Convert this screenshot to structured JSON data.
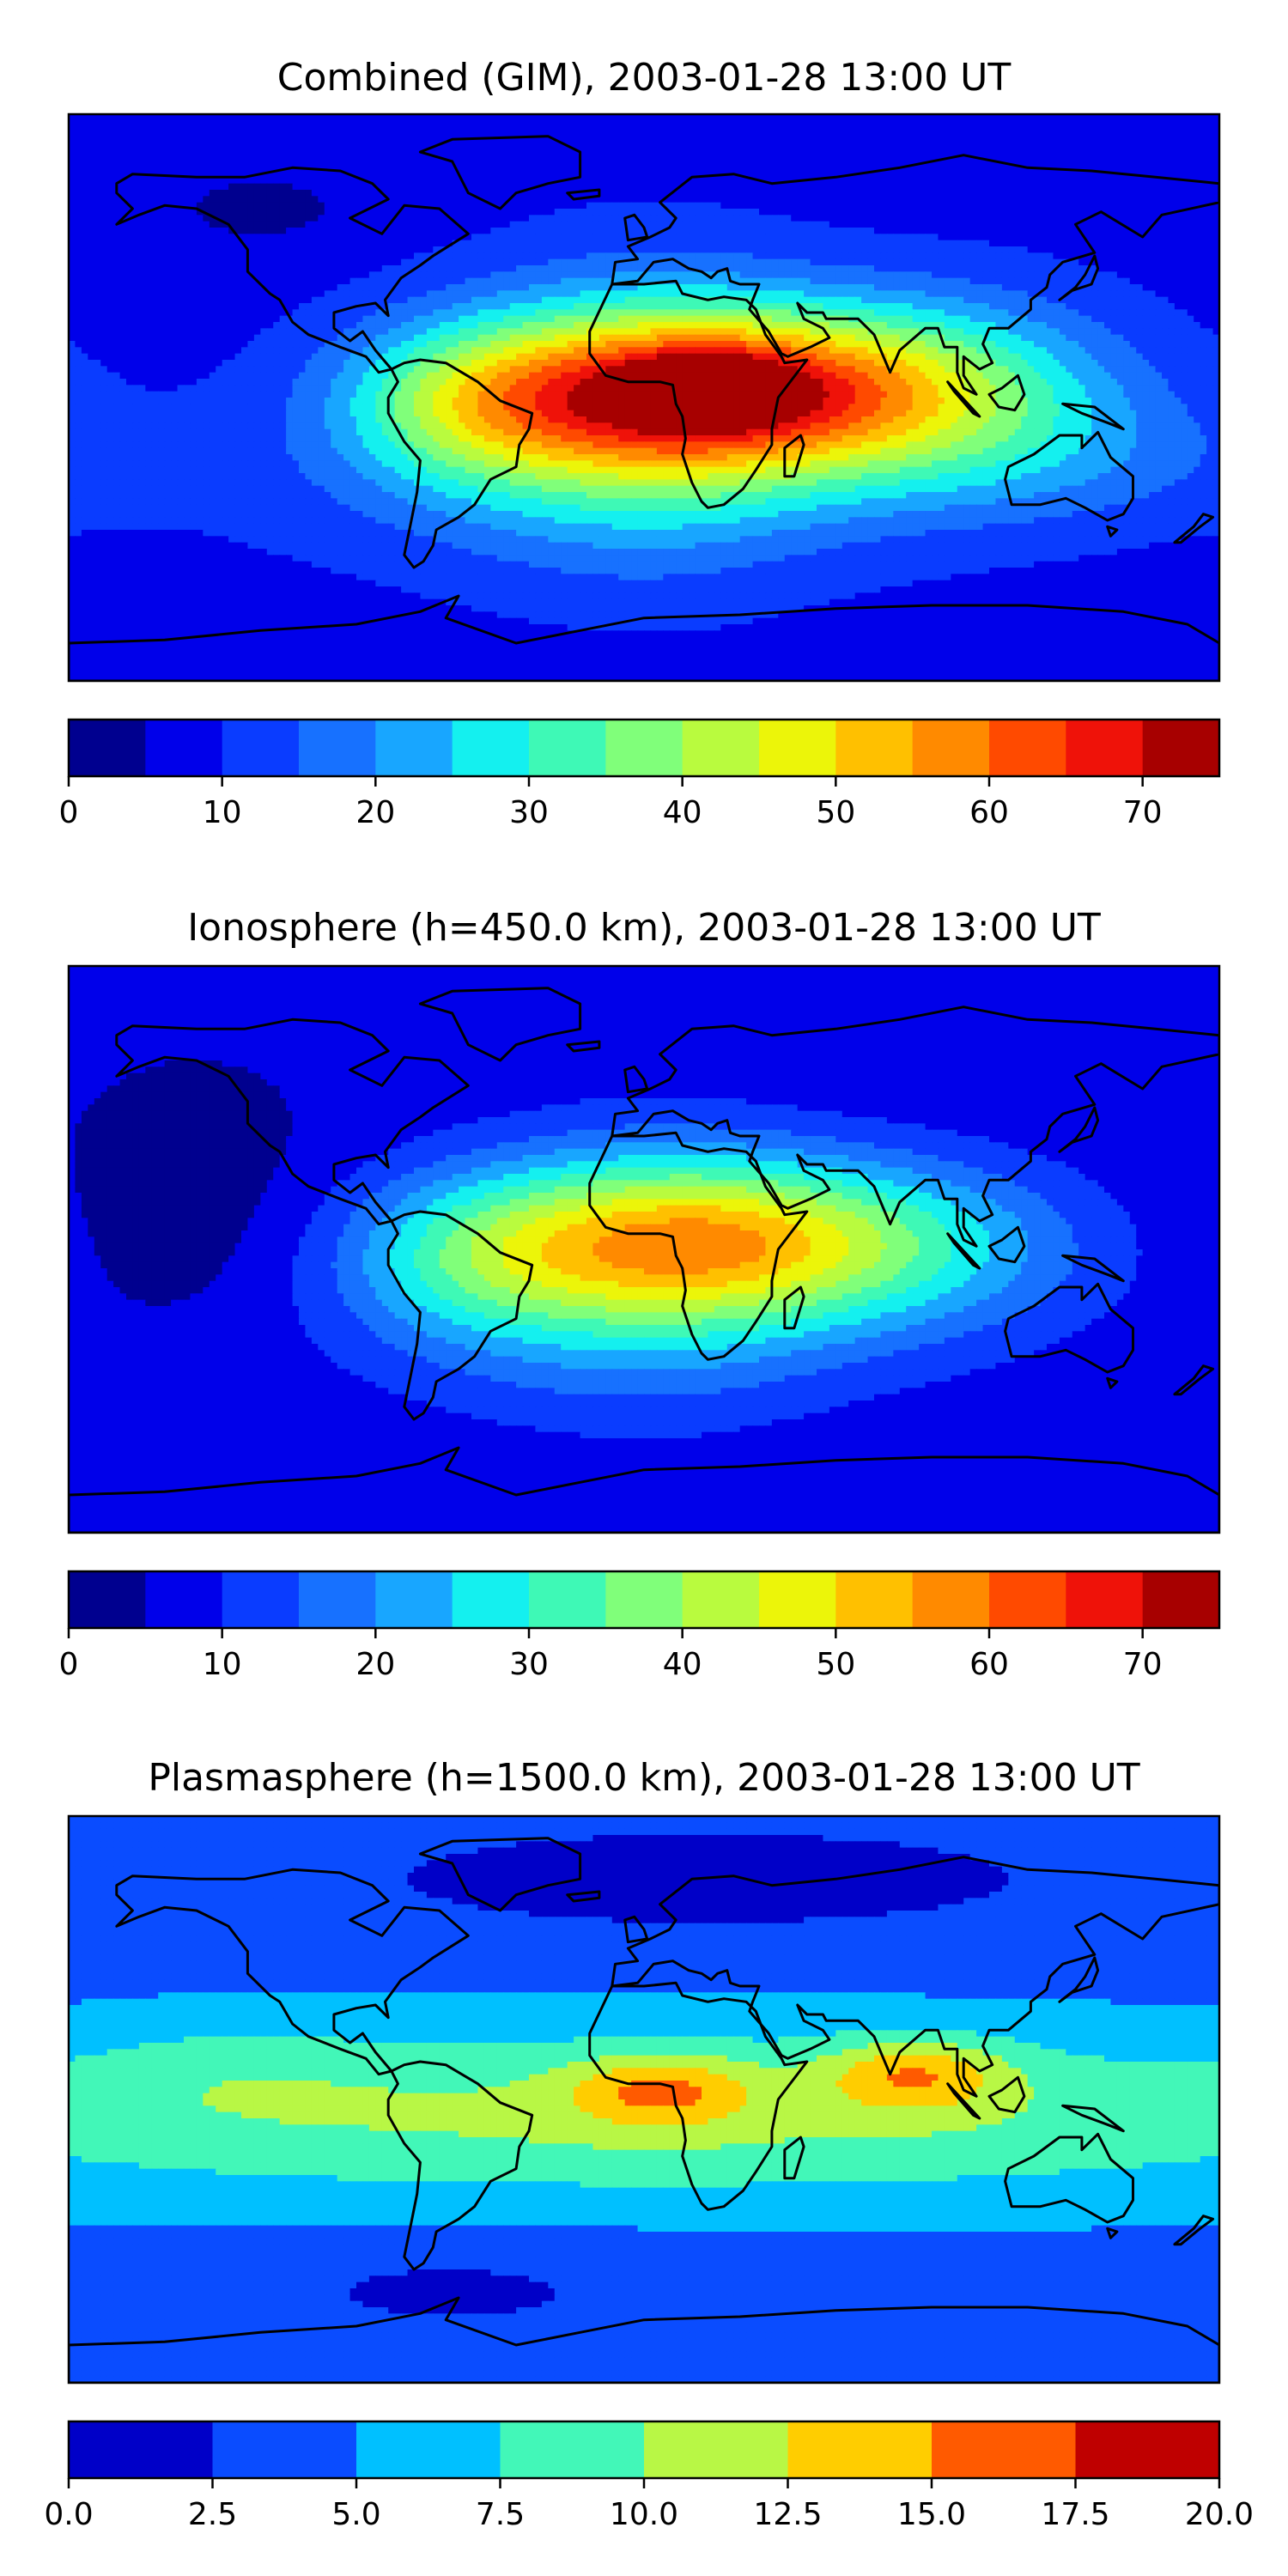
{
  "chart_data": [
    {
      "type": "heatmap",
      "title": "Combined (GIM), 2003-01-28 13:00 UT",
      "xlabel": "",
      "ylabel": "",
      "colorbar": {
        "levels": [
          0,
          5,
          10,
          15,
          20,
          25,
          30,
          35,
          40,
          45,
          50,
          55,
          60,
          65,
          70,
          75
        ],
        "tick_values": [
          0,
          10,
          20,
          30,
          40,
          50,
          60,
          70
        ],
        "tick_labels": [
          "0",
          "10",
          "20",
          "30",
          "40",
          "50",
          "60",
          "70"
        ],
        "colors": [
          "#00008f",
          "#0000ea",
          "#0a3cff",
          "#1771ff",
          "#18a6ff",
          "#14f0ef",
          "#3ef9b6",
          "#80ff7a",
          "#b9fb3e",
          "#ecf509",
          "#ffc000",
          "#ff8a00",
          "#ff4a00",
          "#ef1209",
          "#a70000"
        ]
      },
      "field": {
        "background": 8,
        "blobs": [
          {
            "lon": 25,
            "lat": 2,
            "sx": 55,
            "sy": 18,
            "amp": 52
          },
          {
            "lon": 20,
            "lat": 3,
            "sx": 16,
            "sy": 7,
            "amp": 18
          },
          {
            "lon": 0,
            "lat": -4,
            "sx": 38,
            "sy": 32,
            "amp": 16
          },
          {
            "lon": -55,
            "lat": -2,
            "sx": 28,
            "sy": 18,
            "amp": 18
          },
          {
            "lon": 95,
            "lat": 2,
            "sx": 40,
            "sy": 22,
            "amp": 14
          },
          {
            "lon": -10,
            "lat": -25,
            "sx": 80,
            "sy": 22,
            "amp": 8
          },
          {
            "lon": 140,
            "lat": -20,
            "sx": 45,
            "sy": 15,
            "amp": 6
          },
          {
            "lon": -120,
            "lat": 60,
            "sx": 20,
            "sy": 8,
            "amp": -5
          }
        ]
      }
    },
    {
      "type": "heatmap",
      "title": "Ionosphere  (h=450.0 km), 2003-01-28 13:00 UT",
      "xlabel": "",
      "ylabel": "",
      "colorbar": {
        "levels": [
          0,
          5,
          10,
          15,
          20,
          25,
          30,
          35,
          40,
          45,
          50,
          55,
          60,
          65,
          70,
          75
        ],
        "tick_values": [
          0,
          10,
          20,
          30,
          40,
          50,
          60,
          70
        ],
        "tick_labels": [
          "0",
          "10",
          "20",
          "30",
          "40",
          "50",
          "60",
          "70"
        ],
        "colors": [
          "#00008f",
          "#0000ea",
          "#0a3cff",
          "#1771ff",
          "#18a6ff",
          "#14f0ef",
          "#3ef9b6",
          "#80ff7a",
          "#b9fb3e",
          "#ecf509",
          "#ffc000",
          "#ff8a00",
          "#ff4a00",
          "#ef1209",
          "#a70000"
        ]
      },
      "field": {
        "background": 6,
        "blobs": [
          {
            "lon": 20,
            "lat": 3,
            "sx": 55,
            "sy": 18,
            "amp": 38
          },
          {
            "lon": 0,
            "lat": -5,
            "sx": 40,
            "sy": 30,
            "amp": 12
          },
          {
            "lon": -55,
            "lat": -3,
            "sx": 28,
            "sy": 18,
            "amp": 12
          },
          {
            "lon": 90,
            "lat": 0,
            "sx": 40,
            "sy": 20,
            "amp": 8
          },
          {
            "lon": -10,
            "lat": -25,
            "sx": 80,
            "sy": 22,
            "amp": 6
          },
          {
            "lon": -140,
            "lat": 10,
            "sx": 30,
            "sy": 30,
            "amp": -4
          }
        ]
      }
    },
    {
      "type": "heatmap",
      "title": "Plasmasphere (h=1500.0 km), 2003-01-28 13:00 UT",
      "xlabel": "",
      "ylabel": "",
      "colorbar": {
        "levels": [
          0,
          2.5,
          5,
          7.5,
          10,
          12.5,
          15,
          17.5,
          20
        ],
        "tick_values": [
          0,
          2.5,
          5,
          7.5,
          10,
          12.5,
          15,
          17.5,
          20
        ],
        "tick_labels": [
          "0.0",
          "2.5",
          "5.0",
          "7.5",
          "10.0",
          "12.5",
          "15.0",
          "17.5",
          "20.0"
        ],
        "colors": [
          "#0000c8",
          "#0a4cff",
          "#00c0ff",
          "#42f7b8",
          "#b8f745",
          "#ffcd00",
          "#ff5a00",
          "#bf0000"
        ]
      },
      "field": {
        "background": 4,
        "blobs": [
          {
            "lon": 0,
            "lat": -5,
            "sx": 200,
            "sy": 20,
            "amp": 6.5
          },
          {
            "lon": 5,
            "lat": 3,
            "sx": 20,
            "sy": 8,
            "amp": 6
          },
          {
            "lon": 85,
            "lat": 8,
            "sx": 20,
            "sy": 8,
            "amp": 6.5
          },
          {
            "lon": -130,
            "lat": 10,
            "sx": 35,
            "sy": 12,
            "amp": 1.5
          },
          {
            "lon": 20,
            "lat": 70,
            "sx": 80,
            "sy": 12,
            "amp": -3
          },
          {
            "lon": -60,
            "lat": -60,
            "sx": 50,
            "sy": 12,
            "amp": -2
          }
        ]
      }
    }
  ]
}
